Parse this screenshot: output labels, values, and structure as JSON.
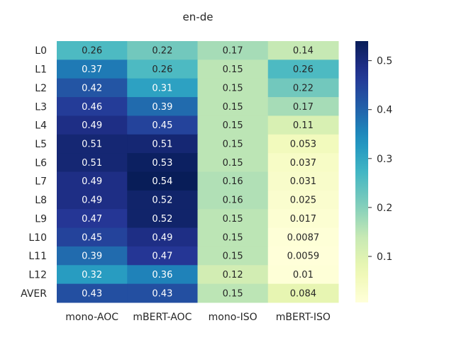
{
  "chart_data": {
    "type": "heatmap",
    "title": "en-de",
    "xlabel": "",
    "ylabel": "",
    "columns": [
      "mono-AOC",
      "mBERT-AOC",
      "mono-ISO",
      "mBERT-ISO"
    ],
    "rows": [
      "L0",
      "L1",
      "L2",
      "L3",
      "L4",
      "L5",
      "L6",
      "L7",
      "L8",
      "L9",
      "L10",
      "L11",
      "L12",
      "AVER"
    ],
    "values": [
      [
        0.26,
        0.22,
        0.17,
        0.14
      ],
      [
        0.37,
        0.26,
        0.15,
        0.26
      ],
      [
        0.42,
        0.31,
        0.15,
        0.22
      ],
      [
        0.46,
        0.39,
        0.15,
        0.17
      ],
      [
        0.49,
        0.45,
        0.15,
        0.11
      ],
      [
        0.51,
        0.51,
        0.15,
        0.053
      ],
      [
        0.51,
        0.53,
        0.15,
        0.037
      ],
      [
        0.49,
        0.54,
        0.16,
        0.031
      ],
      [
        0.49,
        0.52,
        0.16,
        0.025
      ],
      [
        0.47,
        0.52,
        0.15,
        0.017
      ],
      [
        0.45,
        0.49,
        0.15,
        0.0087
      ],
      [
        0.39,
        0.47,
        0.15,
        0.0059
      ],
      [
        0.32,
        0.36,
        0.12,
        0.01
      ],
      [
        0.43,
        0.43,
        0.15,
        0.084
      ]
    ],
    "value_labels": [
      [
        "0.26",
        "0.22",
        "0.17",
        "0.14"
      ],
      [
        "0.37",
        "0.26",
        "0.15",
        "0.26"
      ],
      [
        "0.42",
        "0.31",
        "0.15",
        "0.22"
      ],
      [
        "0.46",
        "0.39",
        "0.15",
        "0.17"
      ],
      [
        "0.49",
        "0.45",
        "0.15",
        "0.11"
      ],
      [
        "0.51",
        "0.51",
        "0.15",
        "0.053"
      ],
      [
        "0.51",
        "0.53",
        "0.15",
        "0.037"
      ],
      [
        "0.49",
        "0.54",
        "0.16",
        "0.031"
      ],
      [
        "0.49",
        "0.52",
        "0.16",
        "0.025"
      ],
      [
        "0.47",
        "0.52",
        "0.15",
        "0.017"
      ],
      [
        "0.45",
        "0.49",
        "0.15",
        "0.0087"
      ],
      [
        "0.39",
        "0.47",
        "0.15",
        "0.0059"
      ],
      [
        "0.32",
        "0.36",
        "0.12",
        "0.01"
      ],
      [
        "0.43",
        "0.43",
        "0.15",
        "0.084"
      ]
    ],
    "colormap": "YlGnBu",
    "vmin": 0.0059,
    "vmax": 0.54,
    "colorbar": {
      "ticks": [
        0.1,
        0.2,
        0.3,
        0.4,
        0.5
      ],
      "tick_labels": [
        "0.1",
        "0.2",
        "0.3",
        "0.4",
        "0.5"
      ],
      "position": "right"
    },
    "grid": false
  }
}
